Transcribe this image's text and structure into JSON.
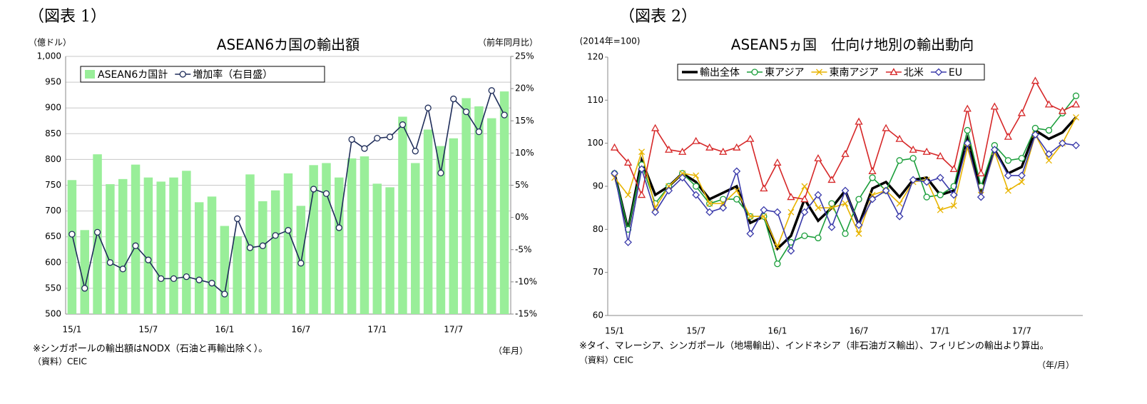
{
  "chart_data": [
    {
      "type": "bar",
      "fig_label": "（図表 1）",
      "title": "ASEAN6カ国の輸出額",
      "y_label": "（億ドル）",
      "y2_label": "（前年同月比）",
      "note": "※シンガポールの輸出額はNODX（石油と再輸出除く）。",
      "source": "（資料）CEIC",
      "x_unit": "（年月）",
      "categories": [
        "15/1",
        null,
        null,
        null,
        null,
        null,
        "15/7",
        null,
        null,
        null,
        null,
        null,
        "16/1",
        null,
        null,
        null,
        null,
        null,
        "16/7",
        null,
        null,
        null,
        null,
        null,
        "17/1",
        null,
        null,
        null,
        null,
        null,
        "17/7",
        null,
        null,
        null,
        null
      ],
      "series": [
        {
          "name": "ASEAN6カ国計",
          "type": "bar",
          "color": "#99ee99",
          "values": [
            760,
            663,
            810,
            752,
            762,
            790,
            765,
            757,
            765,
            778,
            717,
            728,
            671,
            651,
            771,
            719,
            740,
            773,
            710,
            789,
            793,
            765,
            802,
            806,
            753,
            746,
            883,
            793,
            858,
            826,
            841,
            919,
            903,
            880,
            932
          ]
        },
        {
          "name": "増加率（右目盛）",
          "type": "line",
          "axis": "y2",
          "color": "#1f2d5a",
          "marker": "circle",
          "values": [
            -2.6,
            -11.0,
            -2.3,
            -7.0,
            -8.0,
            -4.4,
            -6.6,
            -9.5,
            -9.5,
            -9.2,
            -9.7,
            -10.2,
            -11.9,
            -0.2,
            -4.7,
            -4.4,
            -2.8,
            -2.0,
            -7.1,
            4.4,
            3.7,
            -1.6,
            12.1,
            10.7,
            12.3,
            12.5,
            14.4,
            10.3,
            17.0,
            6.9,
            18.4,
            16.4,
            13.3,
            19.7,
            15.9
          ]
        }
      ],
      "ylim": [
        500,
        1000
      ],
      "yticks": [
        500,
        550,
        600,
        650,
        700,
        750,
        800,
        850,
        900,
        950,
        {
          "value": 1000,
          "label": "1,000"
        }
      ],
      "y2lim": [
        -15,
        25
      ],
      "y2ticks": [
        {
          "value": -15,
          "label": "-15%"
        },
        {
          "value": -10,
          "label": "-10%"
        },
        {
          "value": -5,
          "label": "-5%"
        },
        {
          "value": 0,
          "label": "0%"
        },
        {
          "value": 5,
          "label": "5%"
        },
        {
          "value": 10,
          "label": "10%"
        },
        {
          "value": 15,
          "label": "15%"
        },
        {
          "value": 20,
          "label": "20%"
        },
        {
          "value": 25,
          "label": "25%"
        }
      ],
      "grid": true
    },
    {
      "type": "line",
      "fig_label": "（図表 2）",
      "title": "ASEAN5ヵ国　仕向け地別の輸出動向",
      "y_label": "(2014年=100)",
      "note": "※タイ、マレーシア、シンガポール（地場輸出）、インドネシア（非石油ガス輸出）、フィリピンの輸出より算出。",
      "source": "（資料）CEIC",
      "x_unit": "（年/月）",
      "categories": [
        "15/1",
        null,
        null,
        null,
        null,
        null,
        "15/7",
        null,
        null,
        null,
        null,
        null,
        "16/1",
        null,
        null,
        null,
        null,
        null,
        "16/7",
        null,
        null,
        null,
        null,
        null,
        "17/1",
        null,
        null,
        null,
        null,
        null,
        "17/7",
        null,
        null,
        null,
        null
      ],
      "series": [
        {
          "name": "輸出全体",
          "color": "#000000",
          "width": 3.5,
          "values": [
            93,
            80,
            96,
            88,
            90,
            93,
            91,
            87,
            88.5,
            90,
            81.5,
            83,
            75.5,
            78.5,
            87,
            82,
            85,
            89,
            81,
            89.5,
            91,
            87.5,
            91.5,
            92,
            88,
            89,
            101,
            89,
            98.5,
            93,
            94.5,
            103,
            101,
            102.5,
            106
          ]
        },
        {
          "name": "東アジア",
          "color": "#1a9e3a",
          "marker": "circle",
          "values": [
            93,
            80,
            95,
            86,
            90,
            93,
            90,
            86,
            87,
            87,
            83,
            83,
            72,
            77,
            78.5,
            78,
            86,
            79,
            87,
            92,
            89,
            96,
            96.5,
            87.5,
            88,
            90,
            103,
            90,
            99.5,
            96,
            96.5,
            103.5,
            103,
            107,
            111
          ]
        },
        {
          "name": "東南アジア",
          "color": "#e8b400",
          "marker": "x",
          "values": [
            92,
            88,
            98,
            85,
            90,
            93,
            92.5,
            86,
            86,
            89,
            83,
            83,
            76,
            84,
            90,
            85,
            85,
            86,
            79,
            88,
            89,
            86,
            91,
            91.5,
            84.5,
            85.5,
            99,
            88,
            98,
            89,
            91,
            102,
            96,
            100,
            106
          ]
        },
        {
          "name": "北米",
          "color": "#d62728",
          "marker": "triangle",
          "values": [
            99,
            95.5,
            88,
            103.5,
            98.5,
            98,
            100.5,
            99,
            98,
            99,
            101,
            89.5,
            95.5,
            87.5,
            87,
            96.5,
            91.5,
            97.5,
            105,
            93.5,
            103.5,
            101,
            98.5,
            98,
            97,
            94,
            108,
            93,
            108.5,
            101.5,
            107,
            114.5,
            109,
            107.5,
            109
          ]
        },
        {
          "name": "EU",
          "color": "#3a3aaa",
          "marker": "diamond",
          "values": [
            93,
            77,
            94,
            84,
            89,
            92,
            88,
            84,
            85,
            93.5,
            79,
            84.5,
            84,
            75,
            84,
            88,
            80.5,
            89,
            81,
            87,
            89,
            83,
            91.5,
            91,
            92,
            88,
            100,
            87.5,
            98.5,
            92.5,
            92.5,
            102,
            97.5,
            100,
            99.5
          ]
        }
      ],
      "ylim": [
        60,
        120
      ],
      "yticks": [
        60,
        70,
        80,
        90,
        100,
        110,
        120
      ],
      "grid": false
    }
  ]
}
